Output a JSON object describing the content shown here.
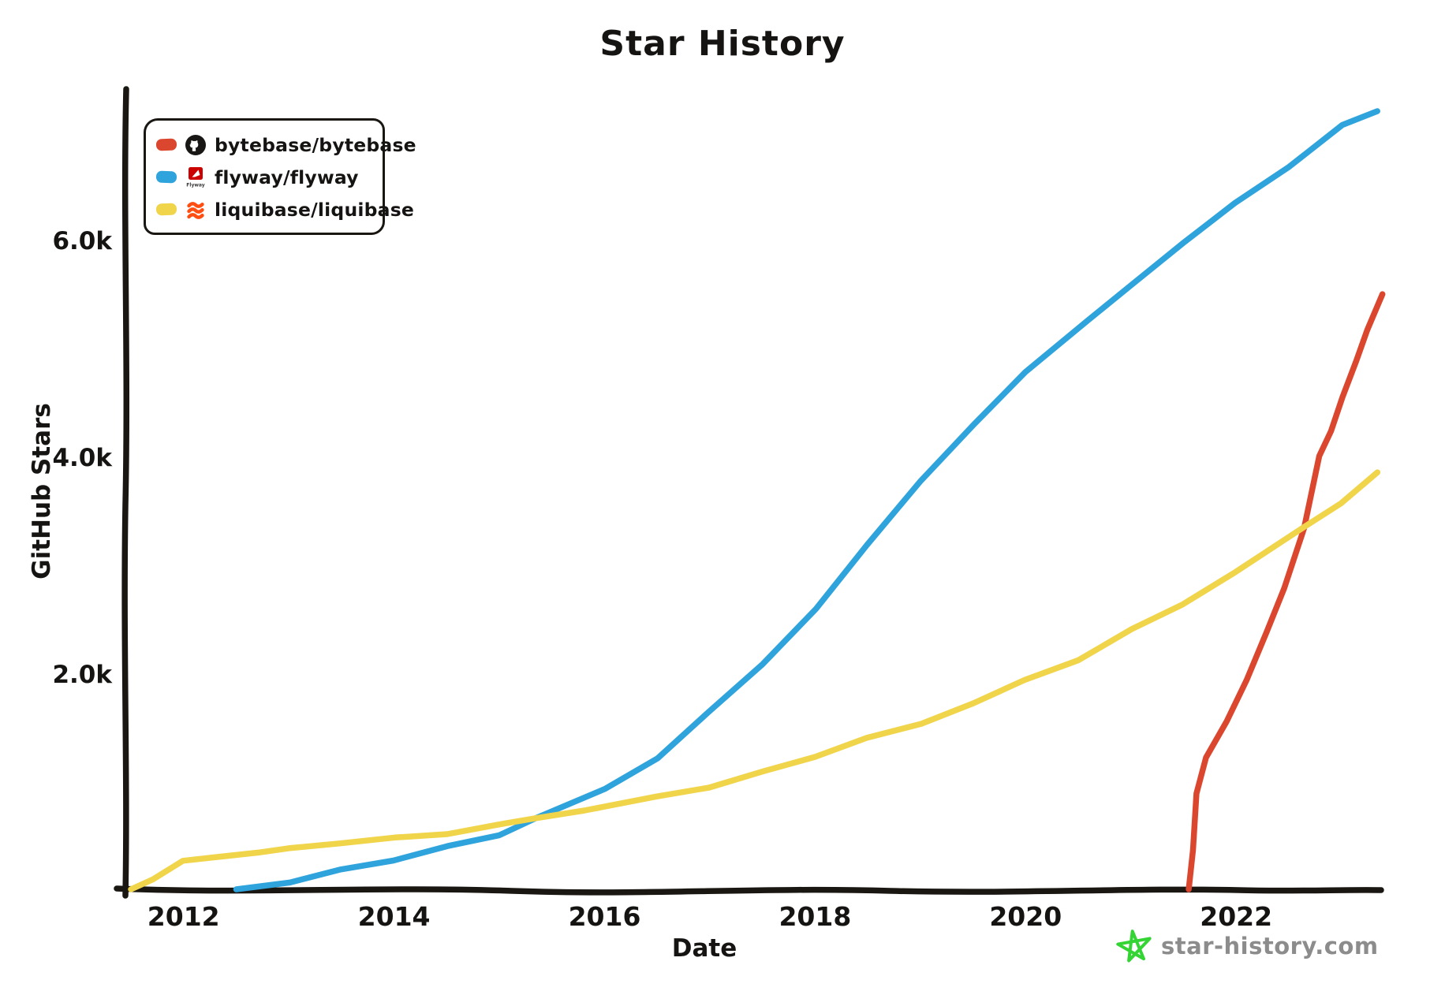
{
  "title": "Star History",
  "x_axis_label": "Date",
  "y_axis_label": "GitHub Stars",
  "watermark": {
    "text": "star-history.com",
    "star_color": "#33D433",
    "text_color": "#8C8C8C"
  },
  "flyway_logo_text": "Flyway",
  "legend": {
    "items": [
      {
        "repo": "bytebase/bytebase",
        "color": "#DB472E",
        "icon": "github-icon"
      },
      {
        "repo": "flyway/flyway",
        "color": "#2EA3DC",
        "icon": "flyway-icon"
      },
      {
        "repo": "liquibase/liquibase",
        "color": "#F0D44A",
        "icon": "liquibase-icon"
      }
    ]
  },
  "chart_data": {
    "type": "line",
    "title": "Star History",
    "xlabel": "Date",
    "ylabel": "GitHub Stars",
    "legend_position": "top-left",
    "grid": false,
    "xlim": [
      2011.44,
      2023.37
    ],
    "ylim": [
      0,
      7410
    ],
    "x_ticks": [
      2012,
      2014,
      2016,
      2018,
      2020,
      2022
    ],
    "y_ticks": [
      {
        "value": 2000,
        "label": "2.0k"
      },
      {
        "value": 4000,
        "label": "4.0k"
      },
      {
        "value": 6000,
        "label": "6.0k"
      }
    ],
    "series": [
      {
        "name": "bytebase/bytebase",
        "color": "#DB472E",
        "points": [
          [
            2021.55,
            0
          ],
          [
            2021.58,
            400
          ],
          [
            2021.63,
            900
          ],
          [
            2021.72,
            1250
          ],
          [
            2021.9,
            1550
          ],
          [
            2022.1,
            1950
          ],
          [
            2022.3,
            2400
          ],
          [
            2022.45,
            2800
          ],
          [
            2022.64,
            3370
          ],
          [
            2022.8,
            4000
          ],
          [
            2022.9,
            4250
          ],
          [
            2023.0,
            4550
          ],
          [
            2023.15,
            4900
          ],
          [
            2023.25,
            5200
          ],
          [
            2023.38,
            5500
          ]
        ]
      },
      {
        "name": "flyway/flyway",
        "color": "#2EA3DC",
        "points": [
          [
            2012.5,
            0
          ],
          [
            2013,
            100
          ],
          [
            2013.5,
            200
          ],
          [
            2014,
            300
          ],
          [
            2014.5,
            400
          ],
          [
            2015,
            520
          ],
          [
            2015.35,
            680
          ],
          [
            2016,
            950
          ],
          [
            2016.5,
            1250
          ],
          [
            2017,
            1640
          ],
          [
            2017.5,
            2100
          ],
          [
            2018,
            2600
          ],
          [
            2018.5,
            3200
          ],
          [
            2019,
            3800
          ],
          [
            2019.5,
            4300
          ],
          [
            2020,
            4800
          ],
          [
            2020.6,
            5250
          ],
          [
            2021,
            5600
          ],
          [
            2021.5,
            6000
          ],
          [
            2022,
            6350
          ],
          [
            2022.5,
            6700
          ],
          [
            2023,
            7050
          ],
          [
            2023.35,
            7200
          ]
        ]
      },
      {
        "name": "liquibase/liquibase",
        "color": "#F0D44A",
        "points": [
          [
            2011.5,
            0
          ],
          [
            2011.7,
            130
          ],
          [
            2012,
            280
          ],
          [
            2012.3,
            330
          ],
          [
            2012.7,
            340
          ],
          [
            2013,
            400
          ],
          [
            2013.5,
            450
          ],
          [
            2014,
            500
          ],
          [
            2014.5,
            550
          ],
          [
            2015,
            600
          ],
          [
            2015.35,
            680
          ],
          [
            2015.8,
            740
          ],
          [
            2016.5,
            880
          ],
          [
            2017,
            980
          ],
          [
            2017.5,
            1100
          ],
          [
            2018,
            1250
          ],
          [
            2018.5,
            1400
          ],
          [
            2019,
            1550
          ],
          [
            2019.5,
            1750
          ],
          [
            2020,
            1950
          ],
          [
            2020.5,
            2150
          ],
          [
            2021,
            2400
          ],
          [
            2021.5,
            2650
          ],
          [
            2022,
            2950
          ],
          [
            2022.64,
            3370
          ],
          [
            2023,
            3600
          ],
          [
            2023.35,
            3850
          ]
        ]
      }
    ]
  }
}
